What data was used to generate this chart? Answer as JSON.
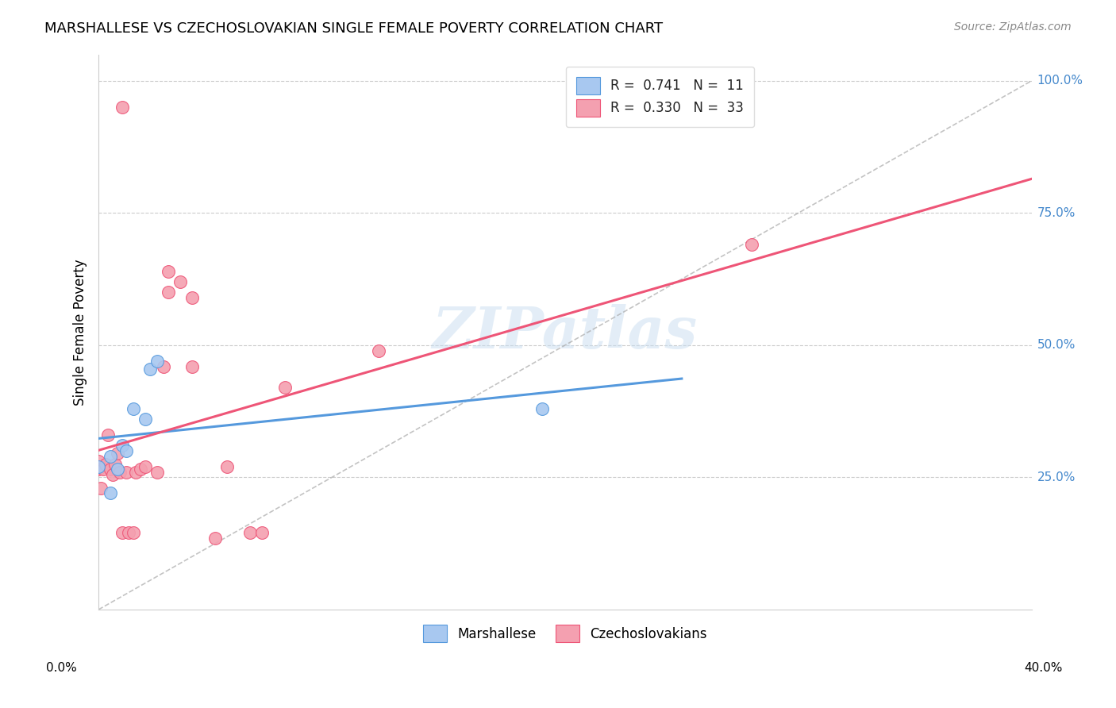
{
  "title": "MARSHALLESE VS CZECHOSLOVAKIAN SINGLE FEMALE POVERTY CORRELATION CHART",
  "source": "Source: ZipAtlas.com",
  "ylabel": "Single Female Poverty",
  "ytick_vals": [
    1.0,
    0.75,
    0.5,
    0.25
  ],
  "ytick_labels": [
    "100.0%",
    "75.0%",
    "50.0%",
    "25.0%"
  ],
  "xmin": 0.0,
  "xmax": 0.4,
  "ymin": 0.0,
  "ymax": 1.05,
  "marshallese_color": "#a8c8f0",
  "czechoslovakian_color": "#f4a0b0",
  "trendline_marshallese_color": "#5599dd",
  "trendline_czechoslovakian_color": "#ee5577",
  "dashed_line_color": "#aaaaaa",
  "watermark": "ZIPatlas",
  "marshallese_x": [
    0.0,
    0.005,
    0.005,
    0.008,
    0.01,
    0.012,
    0.015,
    0.02,
    0.022,
    0.025,
    0.19
  ],
  "marshallese_y": [
    0.27,
    0.22,
    0.29,
    0.265,
    0.31,
    0.3,
    0.38,
    0.36,
    0.455,
    0.47,
    0.38
  ],
  "czechoslovakian_x": [
    0.0,
    0.0,
    0.001,
    0.002,
    0.003,
    0.004,
    0.005,
    0.006,
    0.007,
    0.008,
    0.009,
    0.01,
    0.012,
    0.013,
    0.015,
    0.016,
    0.018,
    0.02,
    0.025,
    0.028,
    0.03,
    0.03,
    0.035,
    0.04,
    0.04,
    0.05,
    0.055,
    0.065,
    0.07,
    0.08,
    0.12,
    0.28,
    0.01
  ],
  "czechoslovakian_y": [
    0.28,
    0.265,
    0.23,
    0.265,
    0.275,
    0.33,
    0.265,
    0.255,
    0.275,
    0.295,
    0.26,
    0.145,
    0.26,
    0.145,
    0.145,
    0.26,
    0.265,
    0.27,
    0.26,
    0.46,
    0.64,
    0.6,
    0.62,
    0.46,
    0.59,
    0.135,
    0.27,
    0.145,
    0.145,
    0.42,
    0.49,
    0.69,
    0.95
  ]
}
